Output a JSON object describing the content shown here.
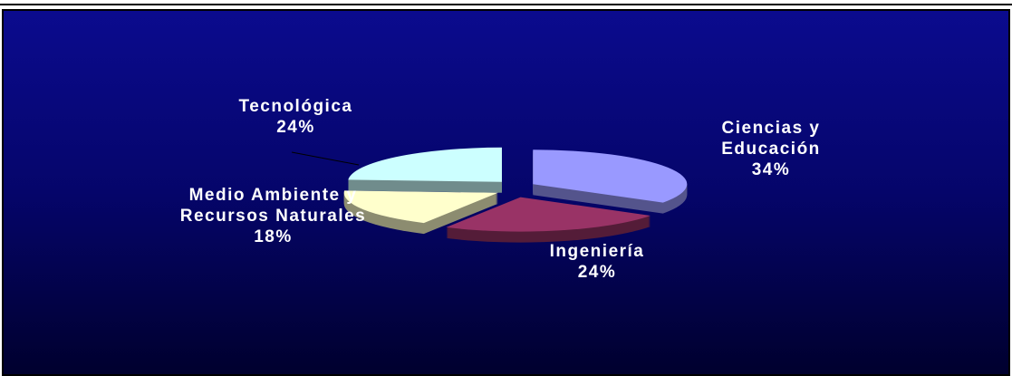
{
  "chart_data": {
    "type": "pie",
    "categories": [
      "Ciencias y Educación",
      "Ingeniería",
      "Medio Ambiente y Recursos Naturales",
      "Tecnológica"
    ],
    "values": [
      34,
      24,
      18,
      24
    ],
    "value_labels": [
      "34%",
      "24%",
      "18%",
      "24%"
    ],
    "colors": [
      "#9999ff",
      "#993366",
      "#ffffcc",
      "#ccffff"
    ],
    "exploded": true,
    "three_d": true
  }
}
